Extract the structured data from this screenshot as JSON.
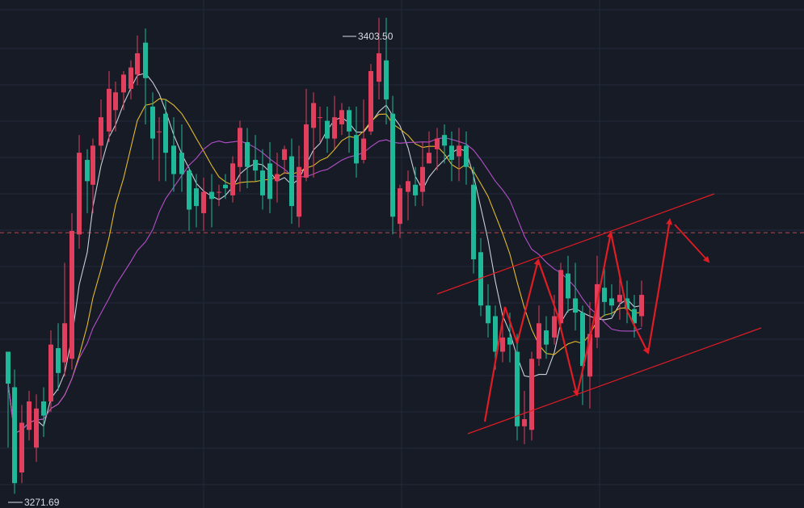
{
  "chart_data": {
    "type": "candlestick",
    "title": "",
    "xlabel": "",
    "ylabel": "",
    "ylim": [
      3268,
      3411
    ],
    "grid": true,
    "price_markers": {
      "high": "3403.50",
      "low": "3271.69"
    },
    "current_price_line": 3345.5,
    "colors": {
      "background": "#161b26",
      "grid": "#222938",
      "up": "#e0405e",
      "down": "#1fb898",
      "ma_white": "#c9ced8",
      "ma_yellow": "#e3b92c",
      "ma_purple": "#b44fc9",
      "annotation": "#e01c24"
    },
    "candles": [
      [
        3312,
        3303,
        3310,
        3285
      ],
      [
        3302,
        3275,
        3307,
        3272
      ],
      [
        3278,
        3292,
        3297,
        3275
      ],
      [
        3290,
        3298,
        3301,
        3287
      ],
      [
        3285,
        3296,
        3300,
        3281
      ],
      [
        3298,
        3294,
        3302,
        3288
      ],
      [
        3298,
        3314,
        3318,
        3295
      ],
      [
        3313,
        3306,
        3320,
        3301
      ],
      [
        3309,
        3320,
        3337,
        3305
      ],
      [
        3310,
        3346,
        3351,
        3307
      ],
      [
        3345,
        3368,
        3373,
        3341
      ],
      [
        3366,
        3360,
        3369,
        3351
      ],
      [
        3359,
        3370,
        3372,
        3351
      ],
      [
        3370,
        3378,
        3383,
        3366
      ],
      [
        3374,
        3386,
        3391,
        3371
      ],
      [
        3380,
        3385,
        3388,
        3374
      ],
      [
        3385,
        3390,
        3391,
        3380
      ],
      [
        3386,
        3392,
        3394,
        3383
      ],
      [
        3390,
        3396,
        3401,
        3387
      ],
      [
        3399,
        3389,
        3403,
        3376
      ],
      [
        3381,
        3372,
        3385,
        3366
      ],
      [
        3374,
        3374,
        3378,
        3360
      ],
      [
        3379,
        3368,
        3383,
        3360
      ],
      [
        3370,
        3362,
        3378,
        3357
      ],
      [
        3368,
        3362,
        3376,
        3357
      ],
      [
        3363,
        3352,
        3364,
        3346
      ],
      [
        3358,
        3353,
        3362,
        3347
      ],
      [
        3351,
        3357,
        3361,
        3346
      ],
      [
        3357,
        3355,
        3362,
        3347
      ],
      [
        3357,
        3357,
        3359,
        3353
      ],
      [
        3359,
        3358,
        3362,
        3355
      ],
      [
        3356,
        3365,
        3367,
        3354
      ],
      [
        3364,
        3375,
        3377,
        3357
      ],
      [
        3371,
        3364,
        3375,
        3358
      ],
      [
        3366,
        3363,
        3373,
        3360
      ],
      [
        3363,
        3356,
        3369,
        3352
      ],
      [
        3365,
        3355,
        3371,
        3351
      ],
      [
        3360,
        3362,
        3368,
        3354
      ],
      [
        3366,
        3369,
        3370,
        3362
      ],
      [
        3367,
        3353,
        3372,
        3348
      ],
      [
        3350,
        3364,
        3370,
        3347
      ],
      [
        3361,
        3376,
        3386,
        3360
      ],
      [
        3375,
        3382,
        3385,
        3361
      ],
      [
        3378,
        3378,
        3381,
        3371
      ],
      [
        3377,
        3372,
        3381,
        3368
      ],
      [
        3372,
        3378,
        3384,
        3369
      ],
      [
        3376,
        3380,
        3382,
        3373
      ],
      [
        3380,
        3374,
        3381,
        3368
      ],
      [
        3373,
        3365,
        3381,
        3361
      ],
      [
        3366,
        3372,
        3383,
        3365
      ],
      [
        3374,
        3391,
        3393,
        3373
      ],
      [
        3388,
        3396,
        3406,
        3383
      ],
      [
        3394,
        3383,
        3406,
        3376
      ],
      [
        3379,
        3350,
        3384,
        3345
      ],
      [
        3348,
        3358,
        3359,
        3344
      ],
      [
        3357,
        3360,
        3363,
        3349
      ],
      [
        3359,
        3356,
        3364,
        3353
      ],
      [
        3357,
        3364,
        3371,
        3353
      ],
      [
        3365,
        3368,
        3374,
        3365
      ],
      [
        3369,
        3372,
        3375,
        3363
      ],
      [
        3373,
        3370,
        3376,
        3365
      ],
      [
        3370,
        3366,
        3374,
        3360
      ],
      [
        3367,
        3370,
        3375,
        3360
      ],
      [
        3370,
        3364,
        3374,
        3359
      ],
      [
        3359,
        3338,
        3364,
        3334
      ],
      [
        3340,
        3325,
        3344,
        3322
      ],
      [
        3325,
        3320,
        3331,
        3316
      ],
      [
        3322,
        3312,
        3325,
        3307
      ],
      [
        3312,
        3316,
        3322,
        3309
      ],
      [
        3316,
        3314,
        3323,
        3309
      ],
      [
        3312,
        3291,
        3317,
        3287
      ],
      [
        3291,
        3293,
        3301,
        3286
      ],
      [
        3290,
        3310,
        3312,
        3287
      ],
      [
        3310,
        3320,
        3325,
        3308
      ],
      [
        3318,
        3314,
        3322,
        3310
      ],
      [
        3316,
        3322,
        3328,
        3314
      ],
      [
        3320,
        3335,
        3337,
        3318
      ],
      [
        3334,
        3327,
        3339,
        3323
      ],
      [
        3327,
        3323,
        3337,
        3318
      ],
      [
        3323,
        3308,
        3325,
        3297
      ],
      [
        3305,
        3317,
        3326,
        3296
      ],
      [
        3316,
        3331,
        3339,
        3313
      ],
      [
        3330,
        3326,
        3336,
        3322
      ],
      [
        3327,
        3325,
        3331,
        3322
      ],
      [
        3326,
        3328,
        3334,
        3321
      ],
      [
        3327,
        3324,
        3332,
        3320
      ],
      [
        3324,
        3320,
        3328,
        3316
      ],
      [
        3322,
        3328,
        3332,
        3319
      ]
    ],
    "candle_x": [
      10,
      18,
      27,
      36,
      45,
      54,
      63,
      72,
      80,
      89,
      98,
      108,
      115,
      125,
      135,
      143,
      153,
      162,
      170,
      180,
      189,
      197,
      205,
      215,
      225,
      234,
      243,
      252,
      262,
      271,
      279,
      288,
      297,
      306,
      316,
      325,
      334,
      343,
      352,
      361,
      370,
      379,
      388,
      396,
      405,
      414,
      423,
      432,
      441,
      450,
      459,
      469,
      478,
      486,
      495,
      505,
      514,
      523,
      531,
      541,
      550,
      559,
      568,
      577,
      586,
      595,
      604,
      613,
      622,
      631,
      640,
      649,
      658,
      667,
      676,
      686,
      694,
      703,
      712,
      721,
      730,
      739,
      748,
      757,
      767,
      776,
      785,
      794
    ]
  },
  "annotations": {
    "channel": "ascending-channel",
    "zigzag": "projected-wave",
    "arrow": "projected-drop"
  }
}
